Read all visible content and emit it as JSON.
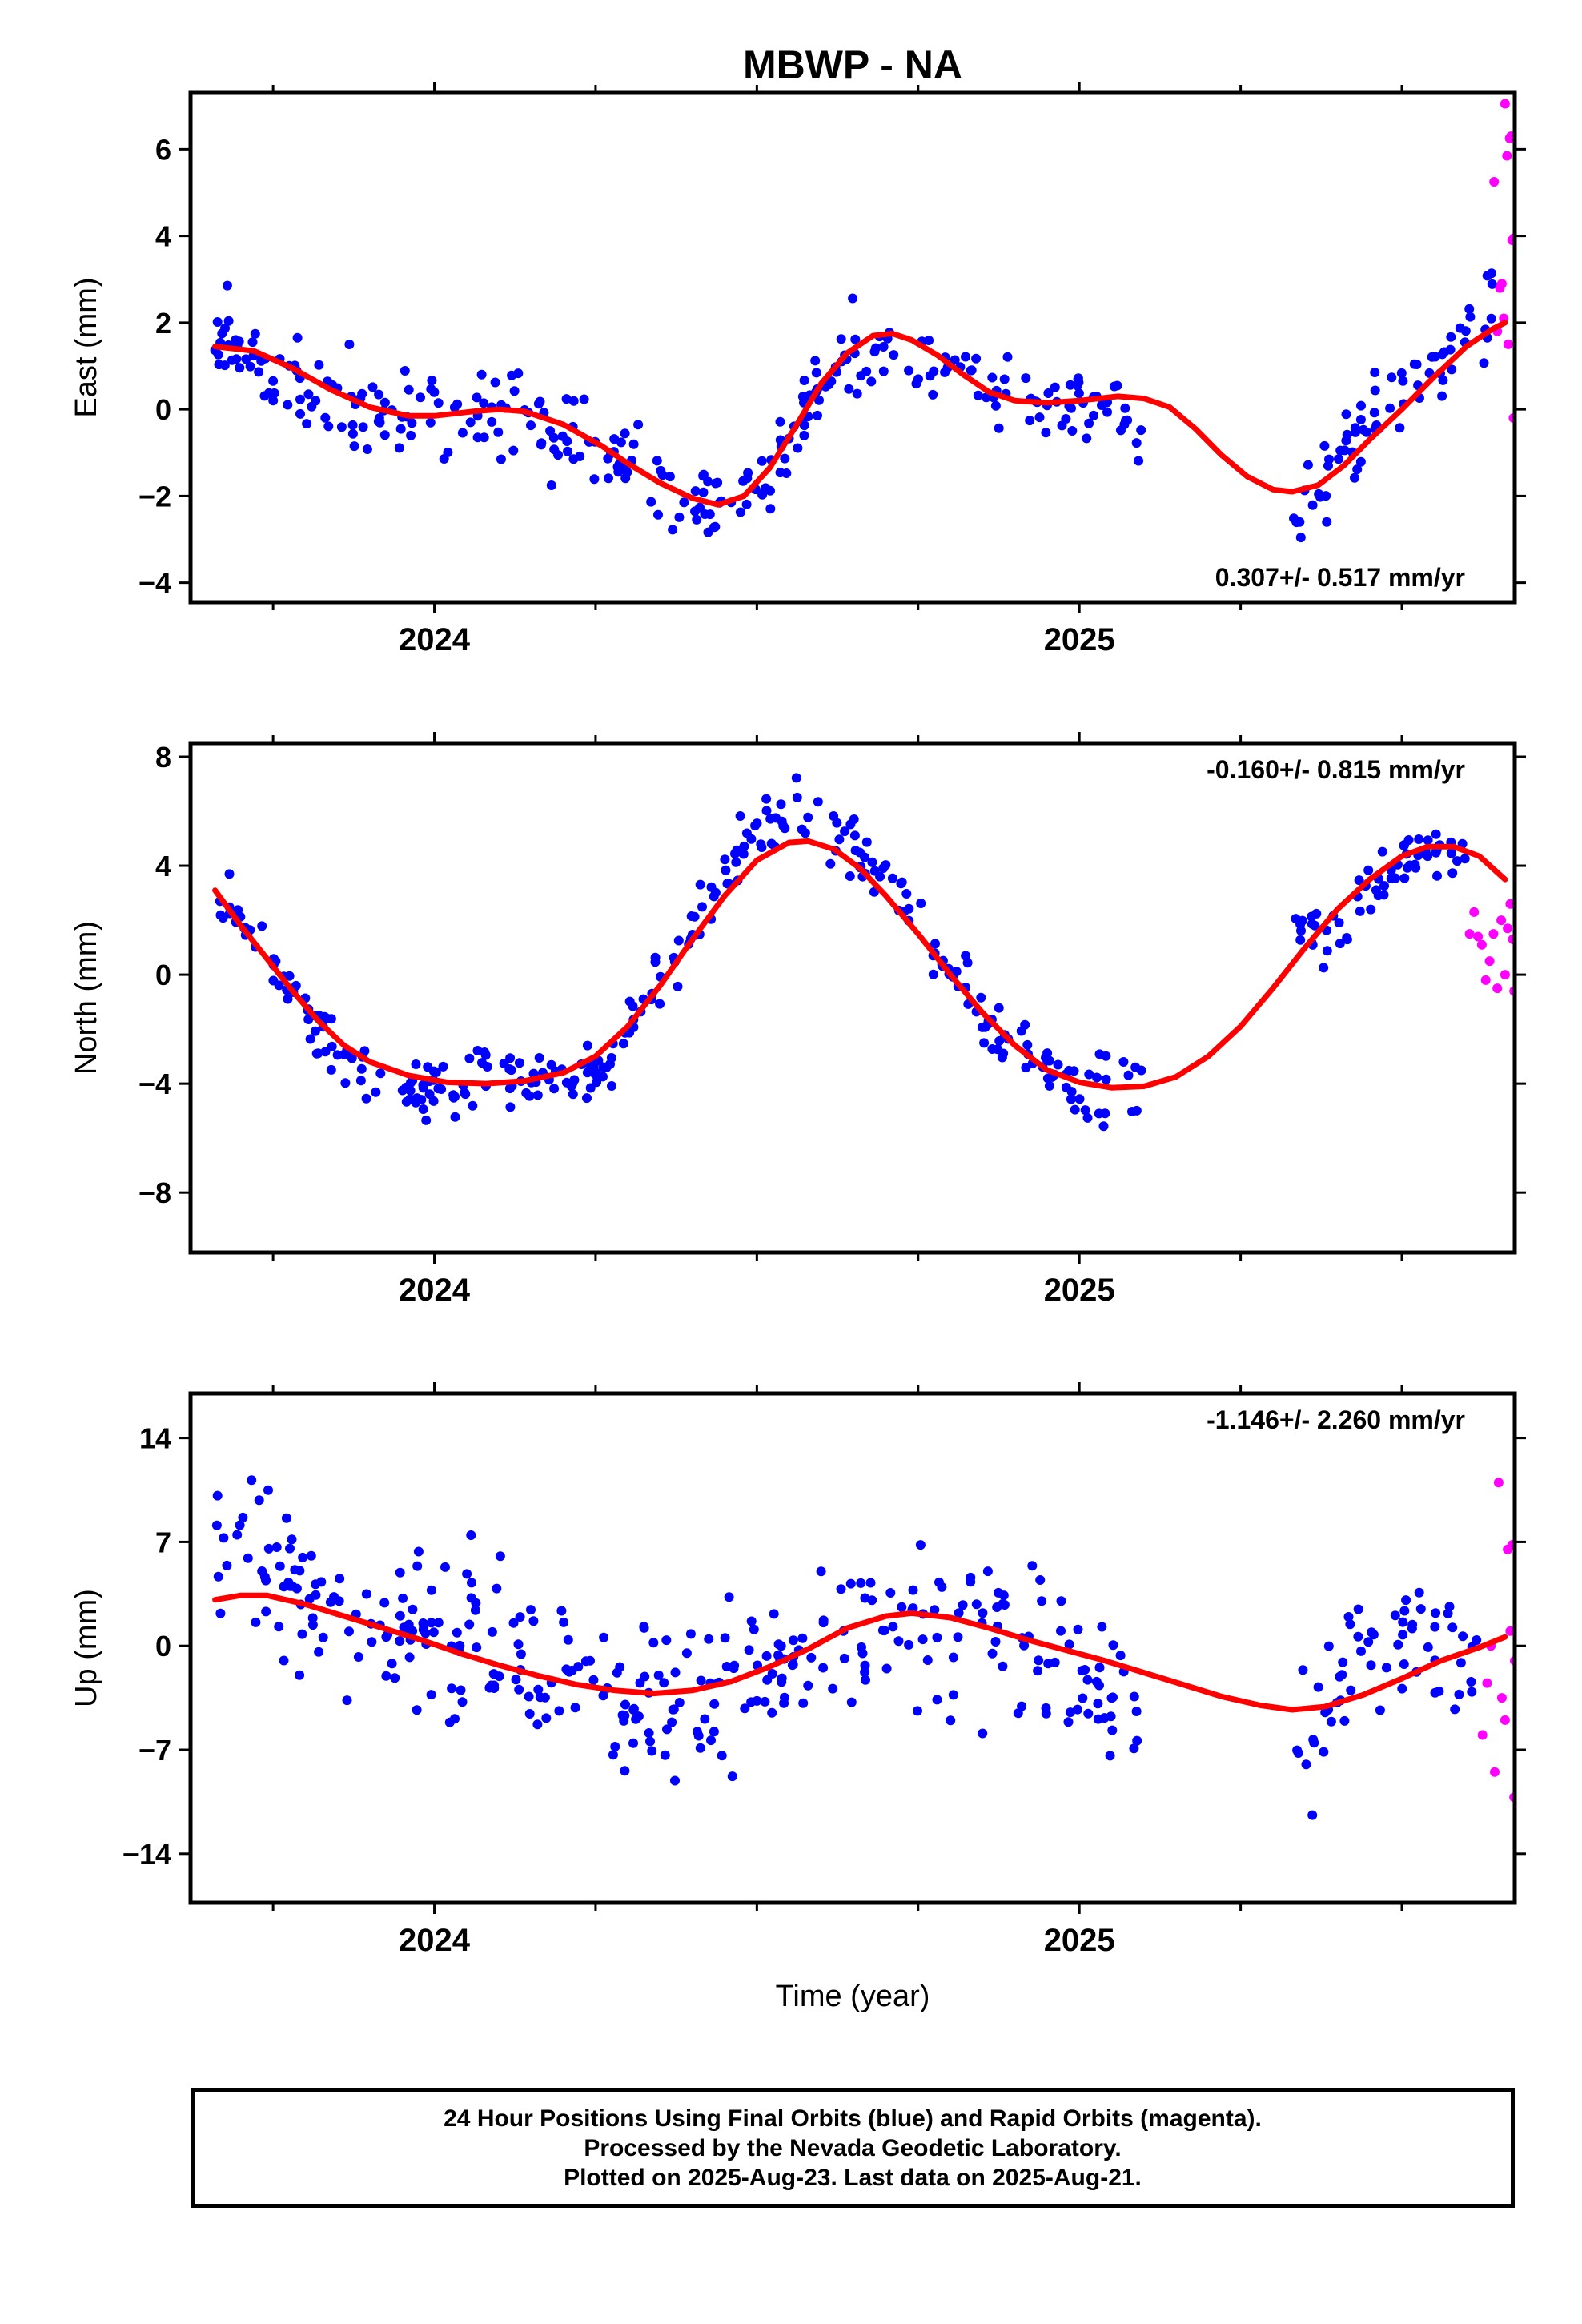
{
  "title": "MBWP - NA",
  "xlabel": "Time (year)",
  "year_ticks": [
    "2024",
    "2025"
  ],
  "caption": {
    "line1": "24 Hour Positions Using Final Orbits (blue) and Rapid Orbits (magenta).",
    "line2": "Processed by the Nevada Geodetic Laboratory.",
    "line3": "Plotted on 2025-Aug-23. Last data on 2025-Aug-21."
  },
  "colors": {
    "final": "#0000ff",
    "rapid": "#ff00ff",
    "model": "#ff0000",
    "frame": "#000000"
  },
  "chart_data": [
    {
      "type": "scatter",
      "id": "east",
      "ylabel": "East (mm)",
      "rate": "0.307+/- 0.517 mm/yr",
      "rate_position": "bottom-right",
      "xlim": [
        2023.622,
        2025.675
      ],
      "ylim": [
        -4.45,
        7.3
      ],
      "yticks": [
        -4,
        -2,
        0,
        2,
        4,
        6
      ],
      "yticklabels": [
        "−4",
        "−2",
        "0",
        "2",
        "4",
        "6"
      ],
      "model_curve": [
        [
          2023.66,
          1.45
        ],
        [
          2023.72,
          1.35
        ],
        [
          2023.78,
          0.95
        ],
        [
          2023.84,
          0.45
        ],
        [
          2023.9,
          0.05
        ],
        [
          2023.96,
          -0.15
        ],
        [
          2024.0,
          -0.15
        ],
        [
          2024.06,
          -0.05
        ],
        [
          2024.1,
          0.0
        ],
        [
          2024.14,
          -0.05
        ],
        [
          2024.2,
          -0.35
        ],
        [
          2024.26,
          -0.85
        ],
        [
          2024.3,
          -1.25
        ],
        [
          2024.35,
          -1.7
        ],
        [
          2024.4,
          -2.05
        ],
        [
          2024.44,
          -2.2
        ],
        [
          2024.48,
          -2.0
        ],
        [
          2024.52,
          -1.35
        ],
        [
          2024.56,
          -0.4
        ],
        [
          2024.6,
          0.6
        ],
        [
          2024.64,
          1.3
        ],
        [
          2024.68,
          1.7
        ],
        [
          2024.71,
          1.75
        ],
        [
          2024.74,
          1.6
        ],
        [
          2024.78,
          1.25
        ],
        [
          2024.82,
          0.8
        ],
        [
          2024.86,
          0.4
        ],
        [
          2024.9,
          0.2
        ],
        [
          2024.95,
          0.15
        ],
        [
          2025.0,
          0.2
        ],
        [
          2025.06,
          0.3
        ],
        [
          2025.1,
          0.25
        ],
        [
          2025.14,
          0.05
        ],
        [
          2025.18,
          -0.45
        ],
        [
          2025.22,
          -1.05
        ],
        [
          2025.26,
          -1.55
        ],
        [
          2025.3,
          -1.85
        ],
        [
          2025.33,
          -1.9
        ],
        [
          2025.37,
          -1.75
        ],
        [
          2025.41,
          -1.3
        ],
        [
          2025.45,
          -0.7
        ],
        [
          2025.5,
          0.0
        ],
        [
          2025.55,
          0.75
        ],
        [
          2025.6,
          1.45
        ],
        [
          2025.64,
          1.85
        ],
        [
          2025.66,
          2.0
        ]
      ],
      "final_trend": [
        [
          2023.66,
          1.6
        ],
        [
          2023.72,
          1.2
        ],
        [
          2023.78,
          0.6
        ],
        [
          2023.84,
          0.2
        ],
        [
          2023.9,
          0.0
        ],
        [
          2023.96,
          0.0
        ],
        [
          2024.02,
          -0.2
        ],
        [
          2024.1,
          0.0
        ],
        [
          2024.16,
          -0.2
        ],
        [
          2024.22,
          -0.7
        ],
        [
          2024.28,
          -1.1
        ],
        [
          2024.34,
          -1.6
        ],
        [
          2024.4,
          -2.1
        ],
        [
          2024.45,
          -2.4
        ],
        [
          2024.5,
          -1.8
        ],
        [
          2024.55,
          -0.6
        ],
        [
          2024.6,
          0.6
        ],
        [
          2024.66,
          1.3
        ],
        [
          2024.72,
          1.4
        ],
        [
          2024.78,
          1.1
        ],
        [
          2024.84,
          0.5
        ],
        [
          2024.9,
          0.1
        ],
        [
          2024.96,
          0.1
        ],
        [
          2025.02,
          0.2
        ],
        [
          2025.08,
          -0.4
        ],
        [
          2025.1,
          -0.4
        ],
        [
          2025.34,
          -2.4
        ],
        [
          2025.38,
          -1.4
        ],
        [
          2025.44,
          -0.4
        ],
        [
          2025.5,
          0.4
        ],
        [
          2025.56,
          1.3
        ],
        [
          2025.6,
          2.0
        ],
        [
          2025.64,
          2.6
        ]
      ],
      "final_gaps": [
        [
          2025.1,
          2025.33
        ]
      ],
      "final_range": [
        2023.66,
        2025.64
      ],
      "final_spread": 0.85,
      "final_count": 430,
      "rapid_points": [
        [
          2025.643,
          5.25
        ],
        [
          2025.648,
          1.8
        ],
        [
          2025.652,
          2.8
        ],
        [
          2025.655,
          2.9
        ],
        [
          2025.658,
          2.1
        ],
        [
          2025.66,
          7.05
        ],
        [
          2025.663,
          5.85
        ],
        [
          2025.665,
          1.5
        ],
        [
          2025.667,
          6.25
        ],
        [
          2025.669,
          6.3
        ],
        [
          2025.671,
          3.9
        ],
        [
          2025.673,
          -0.2
        ],
        [
          2025.674,
          3.95
        ]
      ]
    },
    {
      "type": "scatter",
      "id": "north",
      "ylabel": "North (mm)",
      "rate": "-0.160+/- 0.815 mm/yr",
      "rate_position": "top-right",
      "xlim": [
        2023.622,
        2025.675
      ],
      "ylim": [
        -10.2,
        8.5
      ],
      "yticks": [
        -8,
        -4,
        0,
        4,
        8
      ],
      "yticklabels": [
        "−8",
        "−4",
        "0",
        "4",
        "8"
      ],
      "model_curve": [
        [
          2023.66,
          3.1
        ],
        [
          2023.7,
          1.8
        ],
        [
          2023.74,
          0.6
        ],
        [
          2023.78,
          -0.6
        ],
        [
          2023.82,
          -1.7
        ],
        [
          2023.86,
          -2.6
        ],
        [
          2023.9,
          -3.2
        ],
        [
          2023.96,
          -3.7
        ],
        [
          2024.02,
          -3.95
        ],
        [
          2024.08,
          -4.0
        ],
        [
          2024.14,
          -3.9
        ],
        [
          2024.2,
          -3.6
        ],
        [
          2024.25,
          -3.0
        ],
        [
          2024.3,
          -1.9
        ],
        [
          2024.35,
          -0.4
        ],
        [
          2024.4,
          1.3
        ],
        [
          2024.45,
          2.9
        ],
        [
          2024.5,
          4.2
        ],
        [
          2024.55,
          4.85
        ],
        [
          2024.58,
          4.9
        ],
        [
          2024.62,
          4.6
        ],
        [
          2024.66,
          3.9
        ],
        [
          2024.7,
          2.9
        ],
        [
          2024.75,
          1.5
        ],
        [
          2024.8,
          0.0
        ],
        [
          2024.85,
          -1.4
        ],
        [
          2024.9,
          -2.6
        ],
        [
          2024.95,
          -3.5
        ],
        [
          2025.0,
          -3.95
        ],
        [
          2025.05,
          -4.15
        ],
        [
          2025.1,
          -4.1
        ],
        [
          2025.15,
          -3.75
        ],
        [
          2025.2,
          -3.0
        ],
        [
          2025.25,
          -1.9
        ],
        [
          2025.3,
          -0.5
        ],
        [
          2025.35,
          1.0
        ],
        [
          2025.4,
          2.4
        ],
        [
          2025.45,
          3.5
        ],
        [
          2025.5,
          4.35
        ],
        [
          2025.54,
          4.7
        ],
        [
          2025.58,
          4.7
        ],
        [
          2025.62,
          4.35
        ],
        [
          2025.66,
          3.5
        ]
      ],
      "final_trend": [
        [
          2023.66,
          3.0
        ],
        [
          2023.7,
          1.8
        ],
        [
          2023.74,
          0.5
        ],
        [
          2023.78,
          -0.8
        ],
        [
          2023.82,
          -2.0
        ],
        [
          2023.86,
          -3.2
        ],
        [
          2023.9,
          -4.0
        ],
        [
          2023.96,
          -4.3
        ],
        [
          2024.02,
          -4.2
        ],
        [
          2024.08,
          -4.0
        ],
        [
          2024.14,
          -3.6
        ],
        [
          2024.2,
          -3.8
        ],
        [
          2024.26,
          -3.2
        ],
        [
          2024.3,
          -2.2
        ],
        [
          2024.35,
          -0.3
        ],
        [
          2024.4,
          1.6
        ],
        [
          2024.45,
          3.6
        ],
        [
          2024.5,
          5.4
        ],
        [
          2024.55,
          6.0
        ],
        [
          2024.6,
          5.4
        ],
        [
          2024.65,
          4.2
        ],
        [
          2024.7,
          3.4
        ],
        [
          2024.75,
          2.2
        ],
        [
          2024.8,
          0.0
        ],
        [
          2024.85,
          -1.4
        ],
        [
          2024.9,
          -2.8
        ],
        [
          2024.95,
          -3.6
        ],
        [
          2025.0,
          -4.2
        ],
        [
          2025.05,
          -4.2
        ],
        [
          2025.1,
          -4.0
        ],
        [
          2025.34,
          2.0
        ],
        [
          2025.38,
          1.4
        ],
        [
          2025.42,
          2.2
        ],
        [
          2025.46,
          3.4
        ],
        [
          2025.5,
          4.0
        ],
        [
          2025.55,
          4.6
        ],
        [
          2025.6,
          4.6
        ]
      ],
      "final_gaps": [
        [
          2025.1,
          2025.33
        ]
      ],
      "final_range": [
        2023.66,
        2025.6
      ],
      "final_spread": 1.0,
      "final_count": 420,
      "rapid_points": [
        [
          2025.605,
          1.5
        ],
        [
          2025.612,
          2.3
        ],
        [
          2025.618,
          1.4
        ],
        [
          2025.624,
          1.1
        ],
        [
          2025.63,
          -0.2
        ],
        [
          2025.636,
          0.5
        ],
        [
          2025.642,
          1.5
        ],
        [
          2025.648,
          -0.5
        ],
        [
          2025.654,
          2.0
        ],
        [
          2025.66,
          0.0
        ],
        [
          2025.664,
          1.7
        ],
        [
          2025.668,
          2.6
        ],
        [
          2025.672,
          1.3
        ],
        [
          2025.674,
          -0.6
        ]
      ]
    },
    {
      "type": "scatter",
      "id": "up",
      "ylabel": "Up (mm)",
      "rate": "-1.146+/- 2.260 mm/yr",
      "rate_position": "top-right",
      "xlim": [
        2023.622,
        2025.675
      ],
      "ylim": [
        -17.3,
        17.0
      ],
      "yticks": [
        -14,
        -7,
        0,
        7,
        14
      ],
      "yticklabels": [
        "−14",
        "−7",
        "0",
        "7",
        "14"
      ],
      "model_curve": [
        [
          2023.66,
          3.1
        ],
        [
          2023.7,
          3.4
        ],
        [
          2023.74,
          3.4
        ],
        [
          2023.8,
          2.8
        ],
        [
          2023.86,
          2.0
        ],
        [
          2023.92,
          1.2
        ],
        [
          2023.98,
          0.4
        ],
        [
          2024.04,
          -0.5
        ],
        [
          2024.1,
          -1.3
        ],
        [
          2024.16,
          -2.0
        ],
        [
          2024.22,
          -2.6
        ],
        [
          2024.28,
          -3.0
        ],
        [
          2024.34,
          -3.2
        ],
        [
          2024.4,
          -3.0
        ],
        [
          2024.46,
          -2.4
        ],
        [
          2024.52,
          -1.4
        ],
        [
          2024.58,
          -0.2
        ],
        [
          2024.64,
          1.2
        ],
        [
          2024.7,
          2.0
        ],
        [
          2024.74,
          2.2
        ],
        [
          2024.8,
          1.9
        ],
        [
          2024.86,
          1.2
        ],
        [
          2024.92,
          0.4
        ],
        [
          2024.98,
          -0.3
        ],
        [
          2025.04,
          -1.0
        ],
        [
          2025.1,
          -1.8
        ],
        [
          2025.16,
          -2.6
        ],
        [
          2025.22,
          -3.4
        ],
        [
          2025.28,
          -4.0
        ],
        [
          2025.33,
          -4.3
        ],
        [
          2025.38,
          -4.1
        ],
        [
          2025.44,
          -3.3
        ],
        [
          2025.5,
          -2.2
        ],
        [
          2025.56,
          -1.0
        ],
        [
          2025.62,
          -0.1
        ],
        [
          2025.66,
          0.6
        ]
      ],
      "final_trend": [
        [
          2023.66,
          7.5
        ],
        [
          2023.72,
          6.0
        ],
        [
          2023.78,
          3.0
        ],
        [
          2023.84,
          2.0
        ],
        [
          2023.9,
          2.4
        ],
        [
          2023.96,
          2.0
        ],
        [
          2024.02,
          1.0
        ],
        [
          2024.08,
          1.0
        ],
        [
          2024.14,
          -1.0
        ],
        [
          2024.2,
          -2.0
        ],
        [
          2024.26,
          -4.0
        ],
        [
          2024.32,
          -4.0
        ],
        [
          2024.38,
          -4.0
        ],
        [
          2024.44,
          -3.0
        ],
        [
          2024.5,
          -2.0
        ],
        [
          2024.56,
          -1.0
        ],
        [
          2024.62,
          1.0
        ],
        [
          2024.68,
          2.0
        ],
        [
          2024.74,
          2.0
        ],
        [
          2024.8,
          0.0
        ],
        [
          2024.86,
          1.0
        ],
        [
          2024.92,
          0.0
        ],
        [
          2024.98,
          -2.0
        ],
        [
          2025.04,
          -4.0
        ],
        [
          2025.1,
          -3.0
        ],
        [
          2025.34,
          -7.0
        ],
        [
          2025.38,
          -6.0
        ],
        [
          2025.42,
          -3.0
        ],
        [
          2025.46,
          0.0
        ],
        [
          2025.52,
          1.0
        ],
        [
          2025.58,
          -1.0
        ],
        [
          2025.62,
          -2.0
        ]
      ],
      "final_gaps": [
        [
          2025.1,
          2025.33
        ]
      ],
      "final_range": [
        2023.66,
        2025.62
      ],
      "final_spread": 4.5,
      "final_count": 440,
      "rapid_points": [
        [
          2025.625,
          -6.0
        ],
        [
          2025.632,
          -2.5
        ],
        [
          2025.638,
          0.0
        ],
        [
          2025.644,
          -8.5
        ],
        [
          2025.65,
          11.0
        ],
        [
          2025.655,
          -3.5
        ],
        [
          2025.66,
          -5.0
        ],
        [
          2025.664,
          6.5
        ],
        [
          2025.668,
          1.0
        ],
        [
          2025.671,
          6.8
        ],
        [
          2025.674,
          -10.2
        ],
        [
          2025.675,
          -1.0
        ]
      ]
    }
  ]
}
